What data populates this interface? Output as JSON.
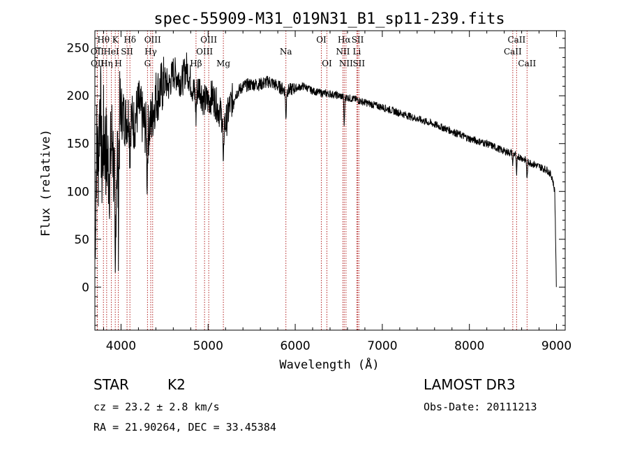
{
  "chart_data": {
    "type": "line",
    "title": "spec-55909-M31_019N31_B1_sp11-239.fits",
    "xlabel": "Wavelength (Å)",
    "ylabel": "Flux (relative)",
    "xlim": [
      3700,
      9100
    ],
    "ylim": [
      -45,
      268
    ],
    "xticks": [
      4000,
      5000,
      6000,
      7000,
      8000,
      9000
    ],
    "yticks": [
      0,
      50,
      100,
      150,
      200,
      250
    ],
    "continuum": [
      [
        3700,
        40
      ],
      [
        3720,
        150
      ],
      [
        3740,
        130
      ],
      [
        3760,
        210
      ],
      [
        3780,
        120
      ],
      [
        3800,
        160
      ],
      [
        3830,
        140
      ],
      [
        3870,
        120
      ],
      [
        3900,
        160
      ],
      [
        3930,
        90
      ],
      [
        3960,
        150
      ],
      [
        4000,
        185
      ],
      [
        4050,
        175
      ],
      [
        4100,
        180
      ],
      [
        4150,
        170
      ],
      [
        4200,
        190
      ],
      [
        4250,
        175
      ],
      [
        4300,
        160
      ],
      [
        4350,
        175
      ],
      [
        4400,
        200
      ],
      [
        4450,
        205
      ],
      [
        4500,
        215
      ],
      [
        4550,
        210
      ],
      [
        4600,
        225
      ],
      [
        4650,
        220
      ],
      [
        4700,
        215
      ],
      [
        4750,
        230
      ],
      [
        4800,
        215
      ],
      [
        4850,
        200
      ],
      [
        4900,
        210
      ],
      [
        4950,
        195
      ],
      [
        5000,
        195
      ],
      [
        5050,
        200
      ],
      [
        5100,
        190
      ],
      [
        5150,
        180
      ],
      [
        5200,
        170
      ],
      [
        5250,
        190
      ],
      [
        5300,
        200
      ],
      [
        5350,
        205
      ],
      [
        5400,
        210
      ],
      [
        5500,
        212
      ],
      [
        5600,
        212
      ],
      [
        5700,
        215
      ],
      [
        5800,
        210
      ],
      [
        5900,
        205
      ],
      [
        6000,
        208
      ],
      [
        6100,
        210
      ],
      [
        6200,
        205
      ],
      [
        6300,
        203
      ],
      [
        6400,
        202
      ],
      [
        6500,
        200
      ],
      [
        6600,
        198
      ],
      [
        6700,
        196
      ],
      [
        6800,
        193
      ],
      [
        7000,
        188
      ],
      [
        7200,
        182
      ],
      [
        7400,
        176
      ],
      [
        7600,
        170
      ],
      [
        7800,
        163
      ],
      [
        8000,
        155
      ],
      [
        8200,
        150
      ],
      [
        8400,
        142
      ],
      [
        8500,
        140
      ],
      [
        8600,
        135
      ],
      [
        8700,
        130
      ],
      [
        8800,
        126
      ],
      [
        8900,
        122
      ],
      [
        8950,
        115
      ],
      [
        8980,
        100
      ],
      [
        9000,
        0
      ]
    ],
    "absorption_dips": [
      {
        "wavelength": 3934,
        "depth": 110
      },
      {
        "wavelength": 3969,
        "depth": 90
      },
      {
        "wavelength": 4102,
        "depth": 40
      },
      {
        "wavelength": 4300,
        "depth": 45
      },
      {
        "wavelength": 4861,
        "depth": 25
      },
      {
        "wavelength": 5175,
        "depth": 60
      },
      {
        "wavelength": 5893,
        "depth": 30
      },
      {
        "wavelength": 6563,
        "depth": 30
      },
      {
        "wavelength": 8498,
        "depth": 12
      },
      {
        "wavelength": 8542,
        "depth": 22
      },
      {
        "wavelength": 8662,
        "depth": 20
      }
    ],
    "lines": [
      {
        "label": "OII",
        "wavelength": 3727,
        "row": 2
      },
      {
        "label": "OII",
        "wavelength": 3729,
        "row": 3
      },
      {
        "label": "Hθ",
        "wavelength": 3798,
        "row": 1
      },
      {
        "label": "Hη",
        "wavelength": 3835,
        "row": 3
      },
      {
        "label": "HeI",
        "wavelength": 3889,
        "row": 2
      },
      {
        "label": "K",
        "wavelength": 3934,
        "row": 1
      },
      {
        "label": "SII",
        "wavelength": 4069,
        "row": 2
      },
      {
        "label": "H",
        "wavelength": 3969,
        "row": 3
      },
      {
        "label": "Hδ",
        "wavelength": 4102,
        "row": 1
      },
      {
        "label": "OIII",
        "wavelength": 4363,
        "row": 1
      },
      {
        "label": "Hγ",
        "wavelength": 4341,
        "row": 2
      },
      {
        "label": "G",
        "wavelength": 4304,
        "row": 3
      },
      {
        "label": "Hβ",
        "wavelength": 4861,
        "row": 3
      },
      {
        "label": "OIII",
        "wavelength": 4959,
        "row": 2
      },
      {
        "label": "OIII",
        "wavelength": 5007,
        "row": 1
      },
      {
        "label": "Mg",
        "wavelength": 5175,
        "row": 3
      },
      {
        "label": "Na",
        "wavelength": 5893,
        "row": 2
      },
      {
        "label": "OI",
        "wavelength": 6300,
        "row": 1
      },
      {
        "label": "OI",
        "wavelength": 6364,
        "row": 3
      },
      {
        "label": "Hα",
        "wavelength": 6563,
        "row": 1
      },
      {
        "label": "NII",
        "wavelength": 6548,
        "row": 2
      },
      {
        "label": "NII",
        "wavelength": 6583,
        "row": 3
      },
      {
        "label": "SII",
        "wavelength": 6717,
        "row": 1
      },
      {
        "label": "Li",
        "wavelength": 6708,
        "row": 2
      },
      {
        "label": "SII",
        "wavelength": 6731,
        "row": 3
      },
      {
        "label": "CaII",
        "wavelength": 8498,
        "row": 2
      },
      {
        "label": "CaII",
        "wavelength": 8542,
        "row": 1
      },
      {
        "label": "CaII",
        "wavelength": 8662,
        "row": 3
      }
    ],
    "line_color": "#b22222",
    "spectrum_color": "#000000"
  },
  "info": {
    "object_class": "STAR",
    "subclass": "K2",
    "redshift_text": "cz = 23.2 ± 2.8 km/s",
    "coords_text": "RA =  21.90264, DEC =  33.45384",
    "survey": "LAMOST DR3",
    "obs_date": "Obs-Date: 20111213"
  }
}
